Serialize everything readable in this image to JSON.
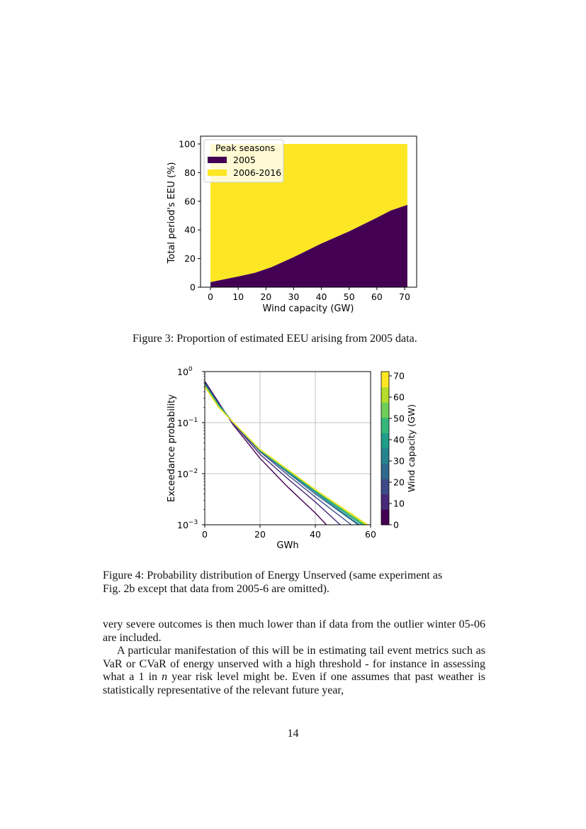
{
  "figure3": {
    "caption": "Figure 3: Proportion of estimated EEU arising from 2005 data.",
    "chart_data": {
      "type": "area",
      "title": "",
      "xlabel": "Wind capacity (GW)",
      "ylabel": "Total period's EEU (%)",
      "xlim": [
        0,
        71
      ],
      "ylim": [
        0,
        100
      ],
      "xticks": [
        0,
        10,
        20,
        30,
        40,
        50,
        60,
        70
      ],
      "yticks": [
        0,
        20,
        40,
        60,
        80,
        100
      ],
      "legend_title": "Peak seasons",
      "legend_position": "top-left",
      "x": [
        0,
        5,
        10,
        16,
        22,
        30,
        40,
        50,
        60,
        65,
        71
      ],
      "series": [
        {
          "name": "2005",
          "color": "#440154",
          "values": [
            3.5,
            5.5,
            7.5,
            10,
            14,
            21,
            30.5,
            39,
            48.5,
            53.5,
            57.5
          ]
        },
        {
          "name": "2006-2016",
          "color": "#fde725",
          "values": [
            96.5,
            94.5,
            92.5,
            90,
            86,
            79,
            69.5,
            61,
            51.5,
            46.5,
            42.5
          ]
        }
      ]
    }
  },
  "figure4": {
    "caption_line1": "Figure 4: Probability distribution of Energy Unserved (same experiment as",
    "caption_line2": "Fig. 2b except that data from 2005-6 are omitted).",
    "chart_data": {
      "type": "line",
      "xlabel": "GWh",
      "ylabel": "Exceedance probability",
      "yscale": "log",
      "xlim": [
        0,
        60
      ],
      "ylim": [
        0.001,
        1
      ],
      "xticks": [
        0,
        20,
        40,
        60
      ],
      "yticks": [
        {
          "base": "10",
          "exp": "0"
        },
        {
          "base": "10",
          "exp": "−1"
        },
        {
          "base": "10",
          "exp": "−2"
        },
        {
          "base": "10",
          "exp": "−3"
        }
      ],
      "grid": true,
      "colorbar": {
        "label": "Wind capacity (GW)",
        "range": [
          0,
          72
        ],
        "ticks": [
          0,
          10,
          20,
          30,
          40,
          50,
          60,
          70
        ]
      },
      "series": [
        {
          "wind_gw": 0,
          "color": "#440154",
          "x": [
            0,
            5,
            10,
            20,
            30,
            40,
            44
          ],
          "y": [
            0.65,
            0.25,
            0.095,
            0.02,
            0.0055,
            0.0017,
            0.001
          ]
        },
        {
          "wind_gw": 8,
          "color": "#482878",
          "x": [
            0,
            5,
            10,
            20,
            30,
            40,
            49
          ],
          "y": [
            0.62,
            0.24,
            0.1,
            0.024,
            0.008,
            0.0028,
            0.001
          ]
        },
        {
          "wind_gw": 16,
          "color": "#3e4989",
          "x": [
            0,
            5,
            10,
            20,
            30,
            40,
            53
          ],
          "y": [
            0.6,
            0.23,
            0.1,
            0.027,
            0.0095,
            0.0035,
            0.001
          ]
        },
        {
          "wind_gw": 24,
          "color": "#31688e",
          "x": [
            0,
            5,
            10,
            20,
            30,
            40,
            55.5
          ],
          "y": [
            0.58,
            0.23,
            0.105,
            0.028,
            0.0105,
            0.004,
            0.001
          ]
        },
        {
          "wind_gw": 32,
          "color": "#26828e",
          "x": [
            0,
            5,
            10,
            20,
            30,
            40,
            56
          ],
          "y": [
            0.56,
            0.22,
            0.105,
            0.028,
            0.011,
            0.0043,
            0.001
          ]
        },
        {
          "wind_gw": 40,
          "color": "#1f9e89",
          "x": [
            0,
            5,
            10,
            20,
            30,
            40,
            57
          ],
          "y": [
            0.55,
            0.22,
            0.105,
            0.029,
            0.0112,
            0.0045,
            0.001
          ]
        },
        {
          "wind_gw": 48,
          "color": "#35b779",
          "x": [
            0,
            5,
            10,
            20,
            30,
            40,
            57.5
          ],
          "y": [
            0.54,
            0.21,
            0.105,
            0.029,
            0.0115,
            0.0047,
            0.001
          ]
        },
        {
          "wind_gw": 56,
          "color": "#6ece58",
          "x": [
            0,
            5,
            10,
            20,
            30,
            40,
            58
          ],
          "y": [
            0.53,
            0.21,
            0.105,
            0.029,
            0.0118,
            0.0048,
            0.001
          ]
        },
        {
          "wind_gw": 64,
          "color": "#b5de2b",
          "x": [
            0,
            5,
            10,
            20,
            30,
            40,
            58.5
          ],
          "y": [
            0.52,
            0.2,
            0.105,
            0.03,
            0.012,
            0.0048,
            0.001
          ]
        },
        {
          "wind_gw": 72,
          "color": "#fde725",
          "x": [
            0,
            5,
            10,
            20,
            30,
            40,
            59
          ],
          "y": [
            0.5,
            0.2,
            0.105,
            0.03,
            0.0122,
            0.0049,
            0.001
          ]
        }
      ]
    }
  },
  "body": {
    "para1": "very severe outcomes is then much lower than if data from the outlier winter 05-06 are included.",
    "para2_before_n": "A particular manifestation of this will be in estimating tail event metrics such as VaR or CVaR of energy unserved with a high threshold - for instance in assessing what a 1 in ",
    "para2_n": "n",
    "para2_after_n": " year risk level might be.  Even if one assumes that past weather is statistically representative of the relevant future year,"
  },
  "page_number": "14"
}
